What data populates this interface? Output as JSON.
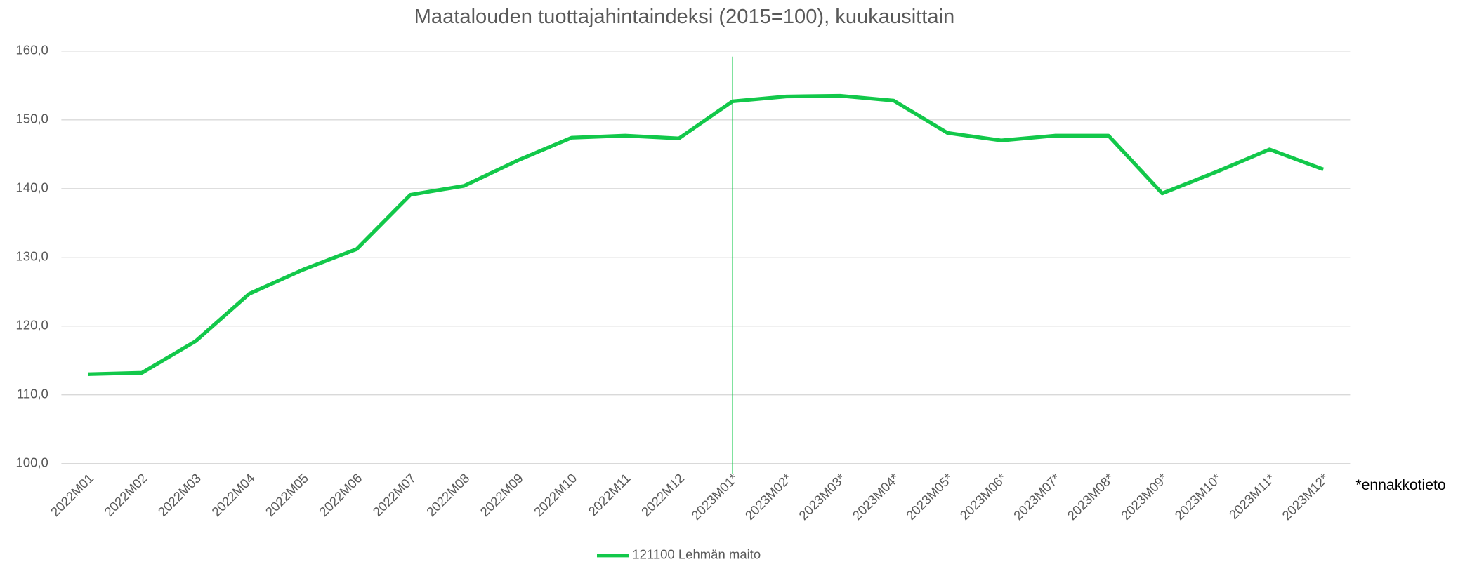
{
  "chart_data": {
    "type": "line",
    "title": "Maatalouden tuottajahintaindeksi (2015=100), kuukausittain",
    "annotation": "*ennakkotieto",
    "categories": [
      "2022M01",
      "2022M02",
      "2022M03",
      "2022M04",
      "2022M05",
      "2022M06",
      "2022M07",
      "2022M08",
      "2022M09",
      "2022M10",
      "2022M11",
      "2022M12",
      "2023M01*",
      "2023M02*",
      "2023M03*",
      "2023M04*",
      "2023M05*",
      "2023M06*",
      "2023M07*",
      "2023M08*",
      "2023M09*",
      "2023M10*",
      "2023M11*",
      "2023M12*"
    ],
    "series": [
      {
        "name": "121100 Lehmän maito",
        "color": "#12c84a",
        "values": [
          113.0,
          113.2,
          117.8,
          124.7,
          128.2,
          131.2,
          139.1,
          140.4,
          144.1,
          147.4,
          147.7,
          147.3,
          152.7,
          153.4,
          153.5,
          152.8,
          148.1,
          147.0,
          147.7,
          147.7,
          139.3,
          142.4,
          145.7,
          142.8
        ]
      }
    ],
    "ylim": [
      100,
      160
    ],
    "yticks": [
      {
        "value": 100,
        "label": "100,0"
      },
      {
        "value": 110,
        "label": "110,0"
      },
      {
        "value": 120,
        "label": "120,0"
      },
      {
        "value": 130,
        "label": "130,0"
      },
      {
        "value": 140,
        "label": "140,0"
      },
      {
        "value": 150,
        "label": "150,0"
      },
      {
        "value": 160,
        "label": "160,0"
      }
    ],
    "grid": true,
    "legend": "bottom"
  }
}
